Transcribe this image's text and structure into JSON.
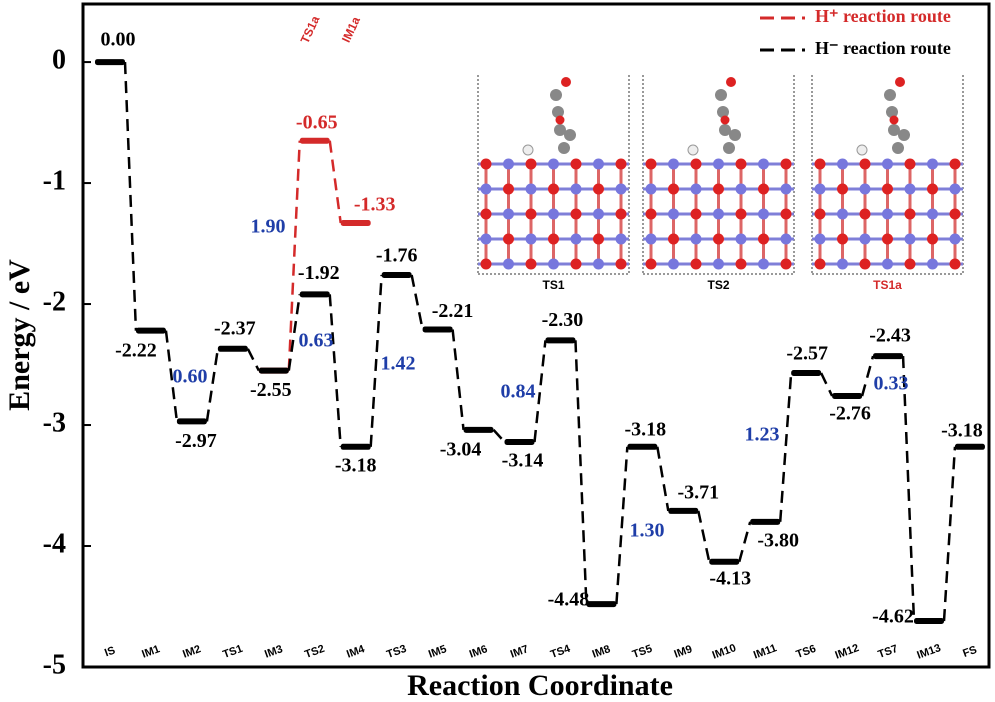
{
  "chart_data": {
    "type": "profile",
    "xlabel": "Reaction Coordinate",
    "ylabel": "Energy / eV",
    "categories": [
      "IS",
      "IM1",
      "IM2",
      "TS1",
      "IM3",
      "TS2",
      "IM4",
      "TS3",
      "IM5",
      "IM6",
      "IM7",
      "TS4",
      "IM8",
      "TS5",
      "IM9",
      "IM10",
      "IM11",
      "TS6",
      "IM12",
      "TS7",
      "IM13",
      "FS"
    ],
    "ylim": [
      -5,
      0.48
    ],
    "yticks": [
      0,
      -1,
      -2,
      -3,
      -4,
      -5
    ],
    "legend": "upper right",
    "series": [
      {
        "name": "H⁺ reaction route",
        "color": "#d42a2a",
        "values": [
          null,
          null,
          null,
          null,
          -2.55,
          -0.65,
          -1.33,
          null,
          null,
          null,
          null,
          null,
          null,
          null,
          null,
          null,
          null,
          null,
          null,
          null,
          null,
          null
        ],
        "value_labels": [
          null,
          null,
          null,
          null,
          null,
          "-0.65",
          "-1.33",
          null,
          null,
          null,
          null,
          null,
          null,
          null,
          null,
          null,
          null,
          null,
          null,
          null,
          null,
          null
        ],
        "point_labels": [
          null,
          null,
          null,
          null,
          null,
          "TS1a",
          "IM1a",
          null,
          null,
          null,
          null,
          null,
          null,
          null,
          null,
          null,
          null,
          null,
          null,
          null,
          null,
          null
        ]
      },
      {
        "name": "H⁻ reaction route",
        "color": "#000000",
        "values": [
          0,
          -2.22,
          -2.97,
          -2.37,
          -2.55,
          -1.92,
          -3.18,
          -1.76,
          -2.21,
          -3.04,
          -3.14,
          -2.3,
          -4.48,
          -3.18,
          -3.71,
          -4.13,
          -3.8,
          -2.57,
          -2.76,
          -2.43,
          -4.62,
          -3.18
        ],
        "value_labels": [
          "0.00",
          "-2.22",
          "-2.97",
          "-2.37",
          "-2.55",
          "-1.92",
          "-3.18",
          "-1.76",
          "-2.21",
          "-3.04",
          "-3.14",
          "-2.30",
          "-4.48",
          "-3.18",
          "-3.71",
          "-4.13",
          "-3.80",
          "-2.57",
          "-2.76",
          "-2.43",
          "-4.62",
          "-3.18"
        ]
      }
    ],
    "barriers": {
      "color": "#1f3ea8",
      "values": [
        0.6,
        0.63,
        1.9,
        1.42,
        0.84,
        1.3,
        1.23,
        0.33
      ],
      "value_labels": [
        "0.60",
        "0.63",
        "1.90",
        "1.42",
        "0.84",
        "1.30",
        "1.23",
        "0.33"
      ]
    },
    "insets": [
      {
        "label": "TS1",
        "color": "#000000"
      },
      {
        "label": "TS2",
        "color": "#000000"
      },
      {
        "label": "TS1a",
        "color": "#d42a2a"
      }
    ]
  }
}
